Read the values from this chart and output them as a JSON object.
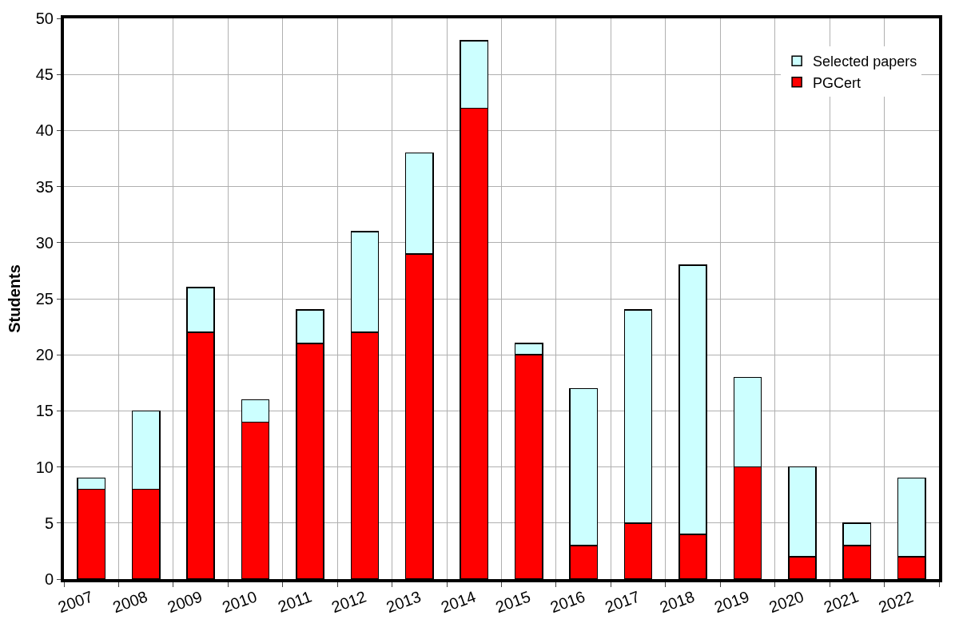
{
  "chart_data": {
    "type": "bar",
    "stacked": true,
    "ylabel": "Students",
    "categories": [
      "2007",
      "2008",
      "2009",
      "2010",
      "2011",
      "2012",
      "2013",
      "2014",
      "2015",
      "2016",
      "2017",
      "2018",
      "2019",
      "2020",
      "2021",
      "2022"
    ],
    "series": [
      {
        "name": "PGCert",
        "color": "#ff0000",
        "values": [
          8,
          8,
          22,
          14,
          21,
          22,
          29,
          42,
          20,
          3,
          5,
          4,
          10,
          2,
          3,
          2
        ]
      },
      {
        "name": "Selected papers",
        "color": "#ccffff",
        "values": [
          1,
          7,
          4,
          2,
          3,
          9,
          9,
          6,
          1,
          14,
          19,
          24,
          8,
          8,
          2,
          7
        ]
      }
    ],
    "ylim": [
      0,
      50
    ],
    "yticks": [
      0,
      5,
      10,
      15,
      20,
      25,
      30,
      35,
      40,
      45,
      50
    ],
    "grid": true,
    "legend": "top right"
  }
}
